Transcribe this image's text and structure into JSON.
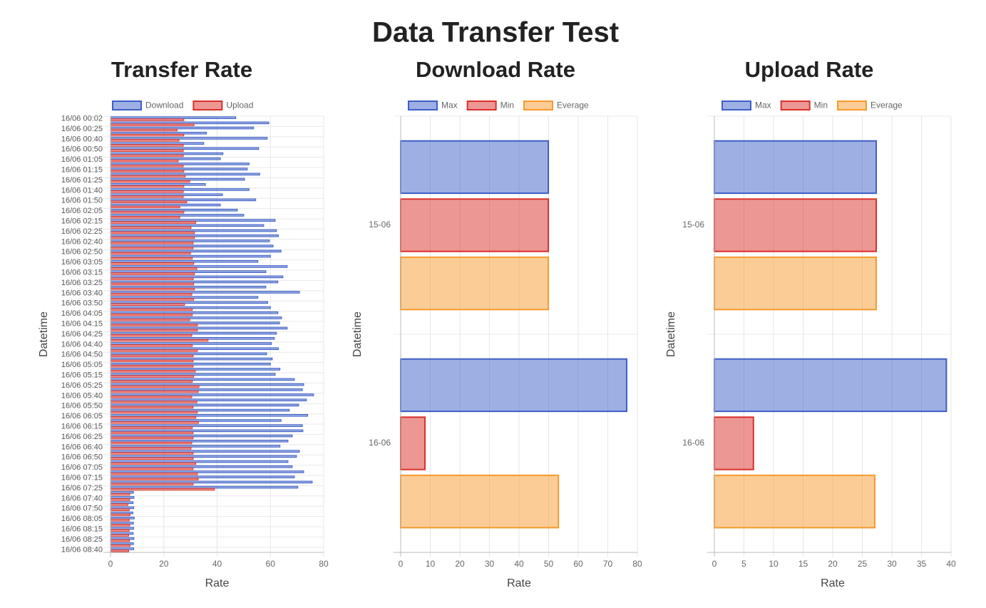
{
  "title": "Data Transfer Test",
  "chart_data": [
    {
      "type": "bar",
      "horizontal": true,
      "title": "Transfer Rate",
      "xlabel": "Rate",
      "ylabel": "Datetime",
      "categories": [
        "16/06 00:02",
        null,
        "16/06 00:25",
        null,
        "16/06 00:40",
        null,
        "16/06 00:50",
        null,
        "16/06 01:05",
        null,
        "16/06 01:15",
        null,
        "16/06 01:25",
        null,
        "16/06 01:40",
        null,
        "16/06 01:50",
        null,
        "16/06 02:05",
        null,
        "16/06 02:15",
        null,
        "16/06 02:25",
        null,
        "16/06 02:40",
        null,
        "16/06 02:50",
        null,
        "16/06 03:05",
        null,
        "16/06 03:15",
        null,
        "16/06 03:25",
        null,
        "16/06 03:40",
        null,
        "16/06 03:50",
        null,
        "16/06 04:05",
        null,
        "16/06 04:15",
        null,
        "16/06 04:25",
        null,
        "16/06 04:40",
        null,
        "16/06 04:50",
        null,
        "16/06 05:05",
        null,
        "16/06 05:15",
        null,
        "16/06 05:25",
        null,
        "16/06 05:40",
        null,
        "16/06 05:50",
        null,
        "16/06 06:05",
        null,
        "16/06 06:15",
        null,
        "16/06 06:25",
        null,
        "16/06 06:40",
        null,
        "16/06 06:50",
        null,
        "16/06 07:05",
        null,
        "16/06 07:15",
        null,
        "16/06 07:25",
        null,
        "16/06 07:40",
        null,
        "16/06 07:50",
        null,
        "16/06 08:05",
        null,
        "16/06 08:15",
        null,
        "16/06 08:25",
        null,
        "16/06 08:40"
      ],
      "series": [
        {
          "name": "Download",
          "color": "#3c5fc7",
          "values": [
            47,
            59.4,
            53.7,
            36,
            58.8,
            35,
            55.6,
            42.2,
            41.2,
            52,
            51.3,
            56,
            50.3,
            35.6,
            52,
            42,
            54.5,
            41.2,
            47.6,
            50,
            61.8,
            57.5,
            62.3,
            63,
            59.6,
            61,
            64,
            60,
            55.3,
            66.3,
            58.3,
            64.7,
            62.8,
            58.3,
            70.9,
            55.3,
            59,
            60,
            62.8,
            64.2,
            63.4,
            66.3,
            62.3,
            61.5,
            60.4,
            63,
            58.6,
            60.7,
            60,
            63.6,
            61.8,
            69,
            72.5,
            72,
            76.2,
            73.5,
            70.6,
            67.1,
            74,
            64,
            72,
            72.2,
            68.2,
            66.6,
            63.6,
            70.9,
            69.8,
            66.6,
            68.2,
            72.5,
            69,
            75.7,
            70.3,
            8.6,
            8.8,
            8.5,
            8.7,
            8.4,
            8.9,
            8.6,
            8.7,
            8.5,
            8.8,
            8.6,
            8.7
          ]
        },
        {
          "name": "Upload",
          "color": "#d9302a",
          "values": [
            27.5,
            31.3,
            25,
            27.5,
            25.7,
            27.3,
            27.3,
            27.3,
            25.4,
            27.3,
            27.5,
            28,
            29.7,
            27.5,
            27.3,
            27.3,
            28.6,
            26,
            27.5,
            26,
            32,
            30.2,
            31.5,
            31.5,
            31,
            31,
            30,
            30.7,
            31.2,
            32.4,
            31.5,
            31,
            31.2,
            31.5,
            30.5,
            31.2,
            27.8,
            30.7,
            30.7,
            29.7,
            32.6,
            32.6,
            30.5,
            36.6,
            30.7,
            32.6,
            31,
            31,
            31,
            31.8,
            31.2,
            30.7,
            33.2,
            32.9,
            30.5,
            32.4,
            31,
            32.6,
            32,
            33,
            30.7,
            31,
            31,
            30.5,
            30.2,
            31,
            31,
            32,
            31,
            32.6,
            32.9,
            31,
            39,
            7.2,
            7.2,
            6.5,
            7,
            7.3,
            7,
            7.2,
            7,
            6.8,
            7.1,
            7.3,
            6.8
          ]
        }
      ],
      "xlim": [
        0,
        80
      ],
      "xticks": [
        0,
        20,
        40,
        60,
        80
      ],
      "grid": true,
      "legend": "top"
    },
    {
      "type": "bar",
      "horizontal": true,
      "title": "Download Rate",
      "xlabel": "Rate",
      "ylabel": "Datetime",
      "categories": [
        "15-06",
        "16-06"
      ],
      "series": [
        {
          "name": "Max",
          "color": "#3c5fc7",
          "values": [
            49.9,
            76.4
          ]
        },
        {
          "name": "Min",
          "color": "#d9302a",
          "values": [
            49.9,
            8.2
          ]
        },
        {
          "name": "Everage",
          "color": "#f79a2e",
          "values": [
            49.9,
            53.3
          ]
        }
      ],
      "xlim": [
        0,
        80
      ],
      "xticks": [
        0,
        10,
        20,
        30,
        40,
        50,
        60,
        70,
        80
      ],
      "grid": true,
      "legend": "top"
    },
    {
      "type": "bar",
      "horizontal": true,
      "title": "Upload Rate",
      "xlabel": "Rate",
      "ylabel": "Datetime",
      "categories": [
        "15-06",
        "16-06"
      ],
      "series": [
        {
          "name": "Max",
          "color": "#3c5fc7",
          "values": [
            27.35,
            39.2
          ]
        },
        {
          "name": "Min",
          "color": "#d9302a",
          "values": [
            27.35,
            6.6
          ]
        },
        {
          "name": "Everage",
          "color": "#f79a2e",
          "values": [
            27.35,
            27.1
          ]
        }
      ],
      "xlim": [
        0,
        40
      ],
      "xticks": [
        0,
        5,
        10,
        15,
        20,
        25,
        30,
        35,
        40
      ],
      "grid": true,
      "legend": "top"
    }
  ]
}
